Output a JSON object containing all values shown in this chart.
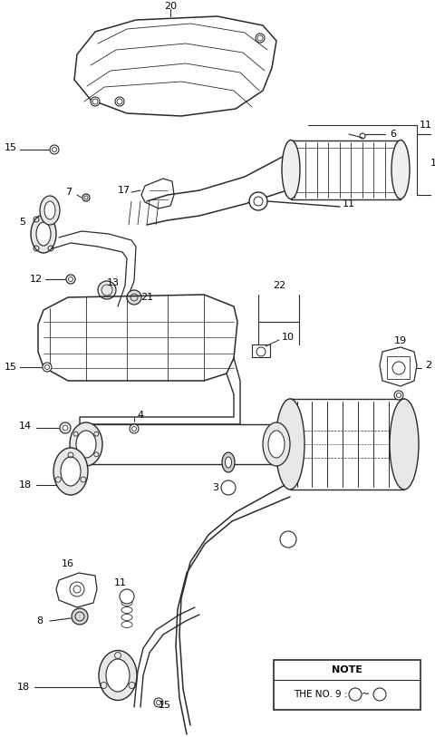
{
  "bg_color": "#ffffff",
  "line_color": "#2a2a2a",
  "note_line1": "NOTE",
  "note_line2": "THE NO. 9 : ① ~ ③",
  "fig_width": 4.8,
  "fig_height": 8.13,
  "dpi": 100
}
